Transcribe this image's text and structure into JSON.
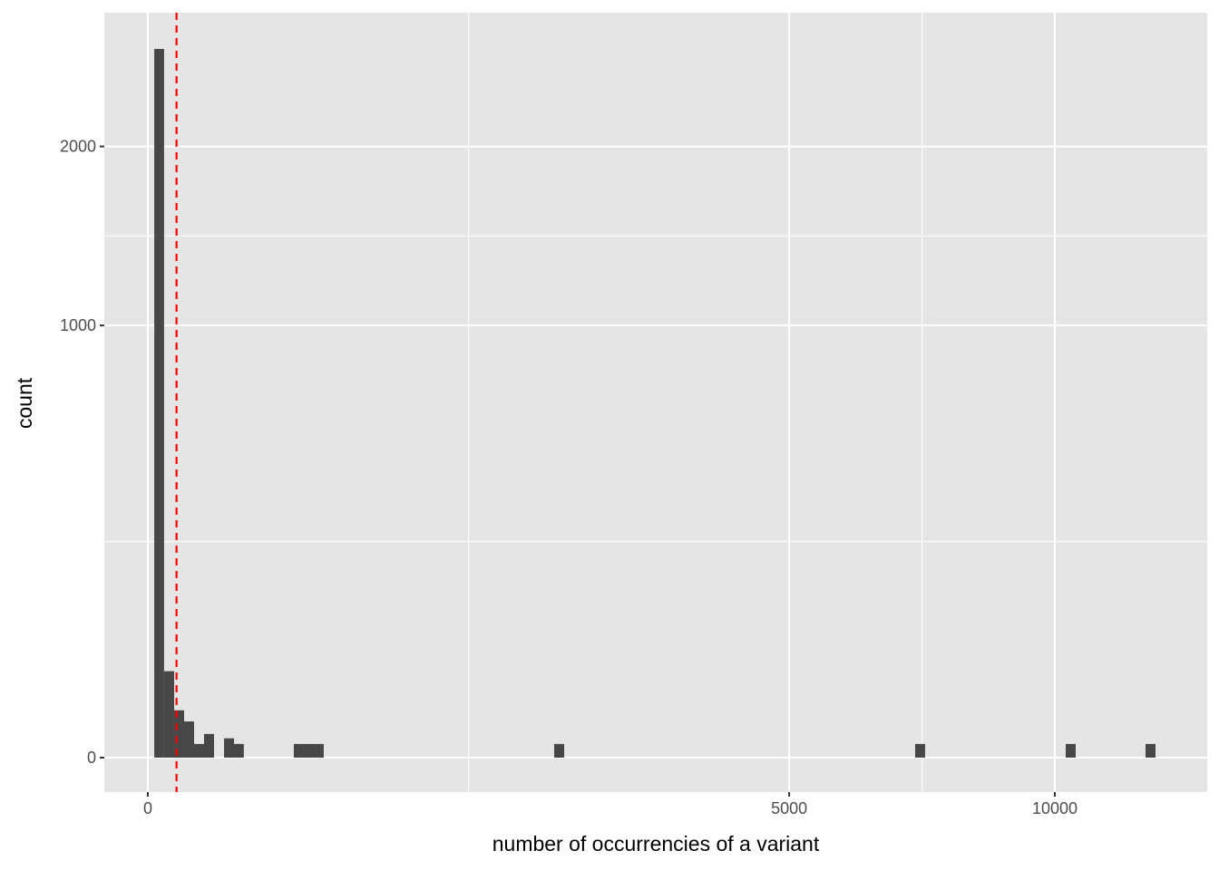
{
  "chart_data": {
    "type": "bar",
    "subtype": "histogram",
    "title": "",
    "xlabel": "number of occurrencies of a variant",
    "ylabel": "count",
    "x_scale": "sqrt",
    "y_scale": "sqrt",
    "xlim": [
      0,
      13000
    ],
    "ylim": [
      0,
      2700
    ],
    "x_ticks": [
      0,
      5000,
      10000
    ],
    "x_tick_labels": [
      "0",
      "5000",
      "10000"
    ],
    "y_ticks": [
      0,
      1000,
      2000
    ],
    "y_tick_labels": [
      "0",
      "1000",
      "2000"
    ],
    "grid": true,
    "bar_color": "#474747",
    "background": "#e5e5e5",
    "bins": [
      {
        "xmin": 0.5,
        "xmax": 3.2,
        "count": 2689
      },
      {
        "xmin": 3.2,
        "xmax": 8.4,
        "count": 40
      },
      {
        "xmin": 8.4,
        "xmax": 16,
        "count": 12
      },
      {
        "xmin": 16,
        "xmax": 26,
        "count": 7
      },
      {
        "xmin": 26,
        "xmax": 38.4,
        "count": 1
      },
      {
        "xmin": 38.4,
        "xmax": 53.3,
        "count": 3
      },
      {
        "xmin": 70.6,
        "xmax": 90.3,
        "count": 2
      },
      {
        "xmin": 90.3,
        "xmax": 112,
        "count": 1
      },
      {
        "xmin": 259,
        "xmax": 296,
        "count": 1
      },
      {
        "xmin": 296,
        "xmax": 335,
        "count": 1
      },
      {
        "xmin": 335,
        "xmax": 376,
        "count": 1
      },
      {
        "xmin": 2007,
        "xmax": 2107,
        "count": 1
      },
      {
        "xmin": 7157,
        "xmax": 7344,
        "count": 1
      },
      {
        "xmin": 10241,
        "xmax": 10465,
        "count": 1
      },
      {
        "xmin": 12100,
        "xmax": 12343,
        "count": 1
      }
    ],
    "reference_line": {
      "x": 10,
      "style": "dashed",
      "color": "#ff0000"
    }
  }
}
